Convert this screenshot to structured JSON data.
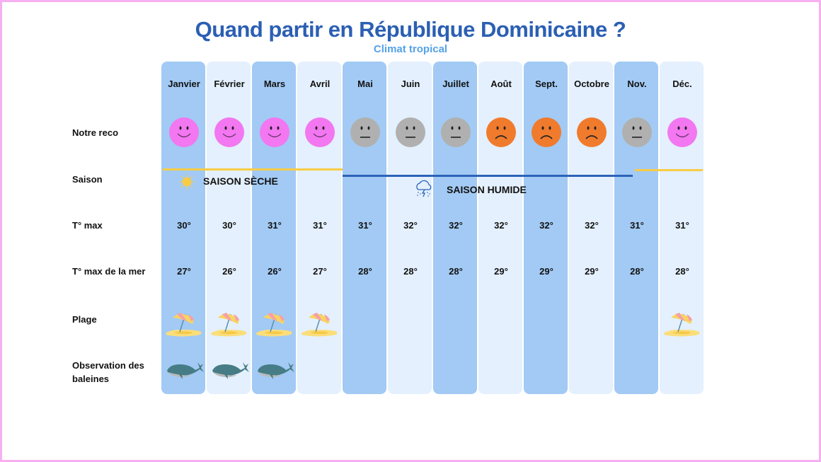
{
  "title": "Quand partir en République Dominicaine ?",
  "subtitle": "Climat tropical",
  "row_labels": {
    "reco": "Notre reco",
    "saison": "Saison",
    "tmax": "T°  max",
    "mer": "T° max de la mer",
    "plage": "Plage",
    "baleines": "Observation des baleines"
  },
  "seasons": {
    "dry": {
      "label": "SAISON SÈCHE",
      "color": "#f8cc45",
      "icon": "sun-icon"
    },
    "wet": {
      "label": "SAISON HUMIDE",
      "color": "#2c63b8",
      "icon": "rain-cloud-icon"
    }
  },
  "colors": {
    "good": "#f277f0",
    "neutral": "#b0b0b0",
    "bad": "#f07b2d",
    "column_dark": "#a2caf4",
    "column_light": "#e4f0fd"
  },
  "months": [
    {
      "name": "Janvier",
      "reco": "good",
      "tmax": "30°",
      "mer": "27°",
      "plage": true,
      "baleines": true
    },
    {
      "name": "Février",
      "reco": "good",
      "tmax": "30°",
      "mer": "26°",
      "plage": true,
      "baleines": true
    },
    {
      "name": "Mars",
      "reco": "good",
      "tmax": "31°",
      "mer": "26°",
      "plage": true,
      "baleines": true
    },
    {
      "name": "Avril",
      "reco": "good",
      "tmax": "31°",
      "mer": "27°",
      "plage": true,
      "baleines": false
    },
    {
      "name": "Mai",
      "reco": "neutral",
      "tmax": "31°",
      "mer": "28°",
      "plage": false,
      "baleines": false
    },
    {
      "name": "Juin",
      "reco": "neutral",
      "tmax": "32°",
      "mer": "28°",
      "plage": false,
      "baleines": false
    },
    {
      "name": "Juillet",
      "reco": "neutral",
      "tmax": "32°",
      "mer": "28°",
      "plage": false,
      "baleines": false
    },
    {
      "name": "Août",
      "reco": "bad",
      "tmax": "32°",
      "mer": "29°",
      "plage": false,
      "baleines": false
    },
    {
      "name": "Sept.",
      "reco": "bad",
      "tmax": "32°",
      "mer": "29°",
      "plage": false,
      "baleines": false
    },
    {
      "name": "Octobre",
      "reco": "bad",
      "tmax": "32°",
      "mer": "29°",
      "plage": false,
      "baleines": false
    },
    {
      "name": "Nov.",
      "reco": "neutral",
      "tmax": "31°",
      "mer": "28°",
      "plage": false,
      "baleines": false
    },
    {
      "name": "Déc.",
      "reco": "good",
      "tmax": "31°",
      "mer": "28°",
      "plage": true,
      "baleines": false
    }
  ]
}
